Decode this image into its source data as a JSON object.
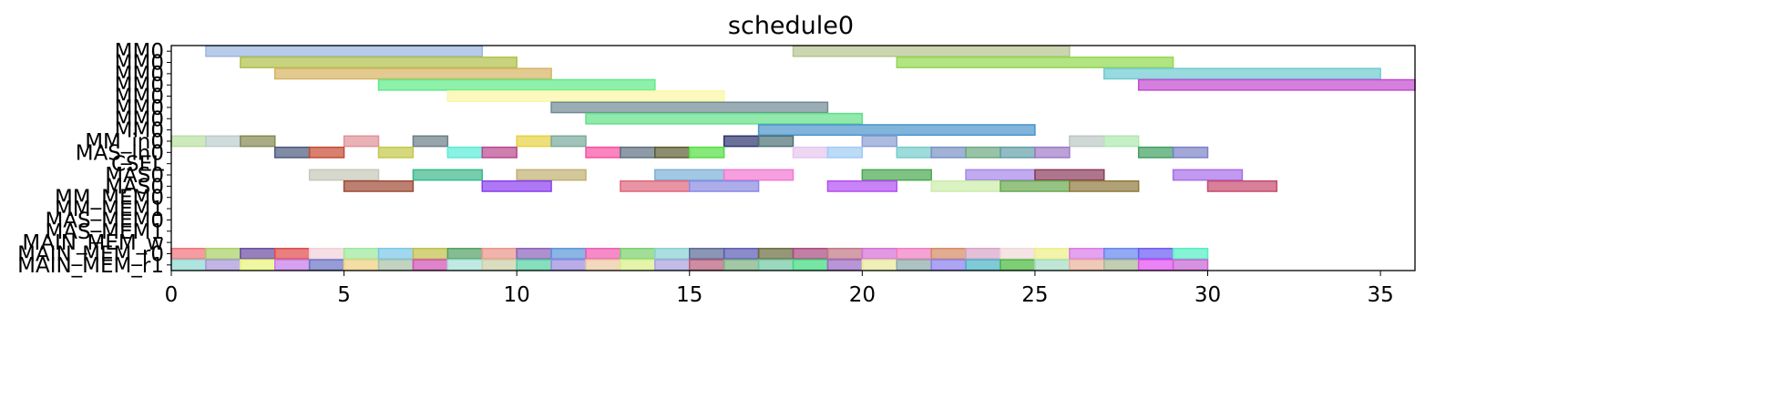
{
  "chart_data": {
    "type": "gantt",
    "title": "schedule0",
    "xlim": [
      0,
      36
    ],
    "x_ticks": [
      0,
      5,
      10,
      15,
      20,
      25,
      30,
      35
    ],
    "rows": [
      "MM0",
      "MM0",
      "MM0",
      "MM0",
      "MM0",
      "MM0",
      "MM0",
      "MM0",
      "MM_in0",
      "MAS_in0",
      "CSEL",
      "MAS0",
      "MAS0",
      "MM_MEM0",
      "MM_MEM1",
      "MAS_MEM0",
      "MAS_MEM1",
      "MAIN_MEM_w",
      "MAIN_MEM_r0",
      "MAIN_MEM_r1"
    ],
    "tasks": [
      {
        "row": 0,
        "start": 1,
        "end": 9,
        "color": "#9ab6e0"
      },
      {
        "row": 0,
        "start": 18,
        "end": 26,
        "color": "#b5c490"
      },
      {
        "row": 1,
        "start": 2,
        "end": 10,
        "color": "#b0c04a"
      },
      {
        "row": 1,
        "start": 21,
        "end": 29,
        "color": "#92d84e"
      },
      {
        "row": 2,
        "start": 3,
        "end": 11,
        "color": "#d6b462"
      },
      {
        "row": 2,
        "start": 27,
        "end": 35,
        "color": "#6ecbd0"
      },
      {
        "row": 3,
        "start": 6,
        "end": 14,
        "color": "#5eea88"
      },
      {
        "row": 3,
        "start": 28,
        "end": 36,
        "color": "#c34ad2"
      },
      {
        "row": 4,
        "start": 8,
        "end": 16,
        "color": "#fbf6a4"
      },
      {
        "row": 5,
        "start": 11,
        "end": 19,
        "color": "#6f8a94"
      },
      {
        "row": 6,
        "start": 12,
        "end": 20,
        "color": "#62e088"
      },
      {
        "row": 7,
        "start": 17,
        "end": 25,
        "color": "#4a94cc"
      },
      {
        "row": 8,
        "start": 0,
        "end": 1,
        "color": "#b9e0a0"
      },
      {
        "row": 8,
        "start": 1,
        "end": 2,
        "color": "#bccccc"
      },
      {
        "row": 8,
        "start": 2,
        "end": 3,
        "color": "#848a52"
      },
      {
        "row": 8,
        "start": 5,
        "end": 6,
        "color": "#e09298"
      },
      {
        "row": 8,
        "start": 7,
        "end": 8,
        "color": "#6a7f86"
      },
      {
        "row": 8,
        "start": 10,
        "end": 11,
        "color": "#e6d240"
      },
      {
        "row": 8,
        "start": 11,
        "end": 12,
        "color": "#7aaa9c"
      },
      {
        "row": 8,
        "start": 16,
        "end": 17,
        "color": "#2c346e"
      },
      {
        "row": 8,
        "start": 17,
        "end": 18,
        "color": "#4c7076"
      },
      {
        "row": 8,
        "start": 20,
        "end": 21,
        "color": "#8a9ed4"
      },
      {
        "row": 8,
        "start": 26,
        "end": 27,
        "color": "#bcc8c4"
      },
      {
        "row": 8,
        "start": 27,
        "end": 28,
        "color": "#aee8b0"
      },
      {
        "row": 9,
        "start": 3,
        "end": 4,
        "color": "#4a5a7e"
      },
      {
        "row": 9,
        "start": 4,
        "end": 5,
        "color": "#c64a32"
      },
      {
        "row": 9,
        "start": 6,
        "end": 7,
        "color": "#c4c84a"
      },
      {
        "row": 9,
        "start": 8,
        "end": 9,
        "color": "#58ecd8"
      },
      {
        "row": 9,
        "start": 9,
        "end": 10,
        "color": "#b8488e"
      },
      {
        "row": 9,
        "start": 12,
        "end": 13,
        "color": "#f650a2"
      },
      {
        "row": 9,
        "start": 13,
        "end": 14,
        "color": "#5e7080"
      },
      {
        "row": 9,
        "start": 14,
        "end": 15,
        "color": "#5c5c32"
      },
      {
        "row": 9,
        "start": 15,
        "end": 16,
        "color": "#52e040"
      },
      {
        "row": 9,
        "start": 18,
        "end": 19,
        "color": "#e6c6ee"
      },
      {
        "row": 9,
        "start": 19,
        "end": 20,
        "color": "#a0ccf4"
      },
      {
        "row": 9,
        "start": 21,
        "end": 22,
        "color": "#76cccc"
      },
      {
        "row": 9,
        "start": 22,
        "end": 23,
        "color": "#7a92c4"
      },
      {
        "row": 9,
        "start": 23,
        "end": 24,
        "color": "#6eaa80"
      },
      {
        "row": 9,
        "start": 24,
        "end": 25,
        "color": "#62a0a6"
      },
      {
        "row": 9,
        "start": 25,
        "end": 26,
        "color": "#9e7ac6"
      },
      {
        "row": 9,
        "start": 28,
        "end": 29,
        "color": "#40a060"
      },
      {
        "row": 9,
        "start": 29,
        "end": 30,
        "color": "#7a82c8"
      },
      {
        "row": 11,
        "start": 4,
        "end": 6,
        "color": "#c4c8b8"
      },
      {
        "row": 11,
        "start": 7,
        "end": 9,
        "color": "#3ab88a"
      },
      {
        "row": 11,
        "start": 10,
        "end": 12,
        "color": "#c0b070"
      },
      {
        "row": 11,
        "start": 14,
        "end": 16,
        "color": "#7ab0d8"
      },
      {
        "row": 11,
        "start": 16,
        "end": 18,
        "color": "#f278d2"
      },
      {
        "row": 11,
        "start": 20,
        "end": 22,
        "color": "#48a850"
      },
      {
        "row": 11,
        "start": 23,
        "end": 25,
        "color": "#a686e8"
      },
      {
        "row": 11,
        "start": 25,
        "end": 27,
        "color": "#8a3c5c"
      },
      {
        "row": 11,
        "start": 29,
        "end": 31,
        "color": "#a66ee8"
      },
      {
        "row": 12,
        "start": 5,
        "end": 7,
        "color": "#a04a36"
      },
      {
        "row": 12,
        "start": 9,
        "end": 11,
        "color": "#8c3ef0"
      },
      {
        "row": 12,
        "start": 13,
        "end": 15,
        "color": "#e0667e"
      },
      {
        "row": 12,
        "start": 15,
        "end": 17,
        "color": "#8a8ae4"
      },
      {
        "row": 12,
        "start": 19,
        "end": 21,
        "color": "#b44ef2"
      },
      {
        "row": 12,
        "start": 22,
        "end": 24,
        "color": "#ccecaa"
      },
      {
        "row": 12,
        "start": 24,
        "end": 26,
        "color": "#6aaa50"
      },
      {
        "row": 12,
        "start": 26,
        "end": 28,
        "color": "#8e7a3c"
      },
      {
        "row": 12,
        "start": 30,
        "end": 32,
        "color": "#c84a6e"
      },
      {
        "row": 18,
        "start": 0,
        "end": 1,
        "color": "#f0727a"
      },
      {
        "row": 18,
        "start": 1,
        "end": 2,
        "color": "#a8d064"
      },
      {
        "row": 18,
        "start": 2,
        "end": 3,
        "color": "#6a4aa0"
      },
      {
        "row": 18,
        "start": 3,
        "end": 4,
        "color": "#e04848"
      },
      {
        "row": 18,
        "start": 4,
        "end": 5,
        "color": "#f2d0da"
      },
      {
        "row": 18,
        "start": 5,
        "end": 6,
        "color": "#9ce89c"
      },
      {
        "row": 18,
        "start": 6,
        "end": 7,
        "color": "#7ac8e8"
      },
      {
        "row": 18,
        "start": 7,
        "end": 8,
        "color": "#c0c048"
      },
      {
        "row": 18,
        "start": 8,
        "end": 9,
        "color": "#52a062"
      },
      {
        "row": 18,
        "start": 9,
        "end": 10,
        "color": "#ea948a"
      },
      {
        "row": 18,
        "start": 10,
        "end": 11,
        "color": "#8a62ba"
      },
      {
        "row": 18,
        "start": 11,
        "end": 12,
        "color": "#5a96d8"
      },
      {
        "row": 18,
        "start": 12,
        "end": 13,
        "color": "#f05ab0"
      },
      {
        "row": 18,
        "start": 13,
        "end": 14,
        "color": "#7ad06c"
      },
      {
        "row": 18,
        "start": 14,
        "end": 15,
        "color": "#88d2d2"
      },
      {
        "row": 18,
        "start": 15,
        "end": 16,
        "color": "#5a6a96"
      },
      {
        "row": 18,
        "start": 16,
        "end": 17,
        "color": "#5a5ab4"
      },
      {
        "row": 18,
        "start": 17,
        "end": 18,
        "color": "#6a6a3e"
      },
      {
        "row": 18,
        "start": 18,
        "end": 19,
        "color": "#a8487e"
      },
      {
        "row": 18,
        "start": 19,
        "end": 20,
        "color": "#c07884"
      },
      {
        "row": 18,
        "start": 20,
        "end": 21,
        "color": "#d66ed6"
      },
      {
        "row": 18,
        "start": 21,
        "end": 22,
        "color": "#f07cc2"
      },
      {
        "row": 18,
        "start": 22,
        "end": 23,
        "color": "#d48a62"
      },
      {
        "row": 18,
        "start": 23,
        "end": 24,
        "color": "#d8a4c8"
      },
      {
        "row": 18,
        "start": 24,
        "end": 25,
        "color": "#f0d8d8"
      },
      {
        "row": 18,
        "start": 25,
        "end": 26,
        "color": "#eef088"
      },
      {
        "row": 18,
        "start": 26,
        "end": 27,
        "color": "#da7ae8"
      },
      {
        "row": 18,
        "start": 27,
        "end": 28,
        "color": "#6484f0"
      },
      {
        "row": 18,
        "start": 28,
        "end": 29,
        "color": "#6a5af4"
      },
      {
        "row": 18,
        "start": 29,
        "end": 30,
        "color": "#52eec4"
      },
      {
        "row": 19,
        "start": 0,
        "end": 1,
        "color": "#8ed8d0"
      },
      {
        "row": 19,
        "start": 1,
        "end": 2,
        "color": "#a896d8"
      },
      {
        "row": 19,
        "start": 2,
        "end": 3,
        "color": "#e8f47a"
      },
      {
        "row": 19,
        "start": 3,
        "end": 4,
        "color": "#c47ae8"
      },
      {
        "row": 19,
        "start": 4,
        "end": 5,
        "color": "#6a72c4"
      },
      {
        "row": 19,
        "start": 5,
        "end": 6,
        "color": "#eed080"
      },
      {
        "row": 19,
        "start": 6,
        "end": 7,
        "color": "#a8c0a8"
      },
      {
        "row": 19,
        "start": 7,
        "end": 8,
        "color": "#d050b4"
      },
      {
        "row": 19,
        "start": 8,
        "end": 9,
        "color": "#a6e0d8"
      },
      {
        "row": 19,
        "start": 9,
        "end": 10,
        "color": "#c8d0a4"
      },
      {
        "row": 19,
        "start": 10,
        "end": 11,
        "color": "#52d0a0"
      },
      {
        "row": 19,
        "start": 11,
        "end": 12,
        "color": "#9a8ae0"
      },
      {
        "row": 19,
        "start": 12,
        "end": 13,
        "color": "#ecc8a0"
      },
      {
        "row": 19,
        "start": 13,
        "end": 14,
        "color": "#d8f08a"
      },
      {
        "row": 19,
        "start": 14,
        "end": 15,
        "color": "#a8a0dc"
      },
      {
        "row": 19,
        "start": 15,
        "end": 16,
        "color": "#b85c7a"
      },
      {
        "row": 19,
        "start": 16,
        "end": 17,
        "color": "#7cb080"
      },
      {
        "row": 19,
        "start": 17,
        "end": 18,
        "color": "#72c8a4"
      },
      {
        "row": 19,
        "start": 18,
        "end": 19,
        "color": "#3eda7e"
      },
      {
        "row": 19,
        "start": 19,
        "end": 20,
        "color": "#9a6ac4"
      },
      {
        "row": 19,
        "start": 20,
        "end": 21,
        "color": "#e8e89a"
      },
      {
        "row": 19,
        "start": 21,
        "end": 22,
        "color": "#8aaaa8"
      },
      {
        "row": 19,
        "start": 22,
        "end": 23,
        "color": "#8a7ef0"
      },
      {
        "row": 19,
        "start": 23,
        "end": 24,
        "color": "#48b4c4"
      },
      {
        "row": 19,
        "start": 24,
        "end": 25,
        "color": "#4ab83e"
      },
      {
        "row": 19,
        "start": 25,
        "end": 26,
        "color": "#a4dcc4"
      },
      {
        "row": 19,
        "start": 26,
        "end": 27,
        "color": "#e8b49a"
      },
      {
        "row": 19,
        "start": 27,
        "end": 28,
        "color": "#a8b894"
      },
      {
        "row": 19,
        "start": 28,
        "end": 29,
        "color": "#e44ef0"
      },
      {
        "row": 19,
        "start": 29,
        "end": 30,
        "color": "#c862d4"
      }
    ]
  }
}
